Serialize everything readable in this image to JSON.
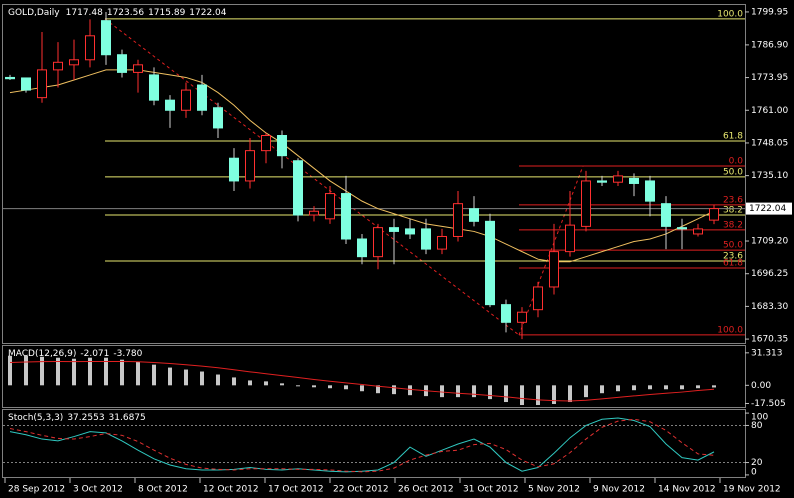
{
  "chart_data": [
    {
      "type": "candlestick",
      "title": "GOLD,Daily",
      "open": [
        1774,
        1773.8,
        1766,
        1777,
        1779,
        1781,
        1796.5,
        1783,
        1776,
        1775,
        1765,
        1761,
        1771,
        1762,
        1742,
        1733,
        1745,
        1751,
        1741,
        1719.5,
        1718,
        1728,
        1710,
        1703,
        1714.5,
        1714,
        1714,
        1706,
        1711,
        1722,
        1717,
        1684,
        1677,
        1682,
        1691,
        1705,
        1715,
        1733,
        1732.5,
        1734,
        1733,
        1724,
        1714.5,
        1712,
        1717.48
      ],
      "high": [
        1775,
        1774,
        1792,
        1788,
        1789,
        1797,
        1799.95,
        1785,
        1781,
        1778,
        1767,
        1772,
        1775,
        1764,
        1746,
        1750,
        1752,
        1753,
        1742,
        1723,
        1731,
        1735,
        1712,
        1716,
        1718,
        1718,
        1718,
        1714,
        1729,
        1727,
        1720,
        1686,
        1683,
        1693,
        1716,
        1729,
        1737,
        1735,
        1737,
        1736,
        1735,
        1727,
        1718,
        1716,
        1723.56
      ],
      "low": [
        1773,
        1768,
        1764,
        1770,
        1773,
        1778,
        1779,
        1774,
        1768,
        1763,
        1754,
        1758,
        1759,
        1750,
        1729,
        1730,
        1740,
        1738,
        1717,
        1717,
        1716,
        1708,
        1700,
        1698,
        1700,
        1710,
        1704,
        1704,
        1709,
        1715,
        1683,
        1673,
        1670.35,
        1679,
        1688,
        1703,
        1713,
        1731,
        1731,
        1727,
        1719,
        1706,
        1706,
        1711,
        1715.89
      ],
      "close": [
        1773.5,
        1769,
        1777,
        1780,
        1781,
        1790.5,
        1783,
        1776,
        1779,
        1765,
        1761,
        1769,
        1761,
        1754,
        1733,
        1745,
        1751,
        1743,
        1719.5,
        1721,
        1728,
        1710,
        1703,
        1714.5,
        1713,
        1712,
        1706,
        1711,
        1724,
        1717,
        1684,
        1677,
        1681,
        1691,
        1705,
        1715.5,
        1733,
        1732.5,
        1735,
        1732,
        1725,
        1715,
        1714,
        1714,
        1722.04
      ],
      "ma": [
        1768,
        1769,
        1770,
        1771,
        1773,
        1775,
        1777,
        1777,
        1777,
        1776,
        1775,
        1774,
        1772,
        1768,
        1763,
        1757,
        1752,
        1748,
        1743,
        1738,
        1733,
        1729,
        1725,
        1722,
        1720,
        1718,
        1716,
        1715,
        1714,
        1713,
        1711,
        1708,
        1705,
        1702,
        1701,
        1701,
        1703,
        1705,
        1707,
        1709,
        1710,
        1712,
        1715,
        1718,
        1721
      ],
      "up_color": "#ff3030",
      "down_color": "#7fffe0",
      "ma_color": "#f0c060",
      "ylim": [
        1668.8,
        1802.7
      ],
      "yticks": [
        1799.95,
        {
          "value": 1786.9,
          "label": "1786.90"
        },
        1773.95,
        {
          "value": 1761,
          "label": "1761.00"
        },
        1748.05,
        {
          "value": 1735.1,
          "label": "1735.10"
        },
        {
          "value": 1709.2,
          "label": "1709.20"
        },
        1696.25,
        {
          "value": 1683.3,
          "label": "1683.30"
        },
        1670.35
      ],
      "fibonacci": [
        {
          "color": "#e8e870",
          "levels": [
            {
              "label": "100.0",
              "value": 1797.2
            },
            {
              "label": "61.8",
              "value": 1748.8
            },
            {
              "label": "50.0",
              "value": 1734.6
            },
            {
              "label": "38.2",
              "value": 1719.5
            },
            {
              "label": "23.6",
              "value": 1701.3
            }
          ]
        },
        {
          "color": "#e02020",
          "levels": [
            {
              "label": "0.0",
              "value": 1738.9
            },
            {
              "label": "23.6",
              "value": 1723.5
            },
            {
              "label": "38.2",
              "value": 1713.6
            },
            {
              "label": "50.0",
              "value": 1705.6
            },
            {
              "label": "61.8",
              "value": 1698.5
            },
            {
              "label": "100.0",
              "value": 1672
            }
          ]
        }
      ],
      "x_labels": [
        "28 Sep 2012",
        "3 Oct 2012",
        "8 Oct 2012",
        "12 Oct 2012",
        "17 Oct 2012",
        "22 Oct 2012",
        "26 Oct 2012",
        "31 Oct 2012",
        "5 Nov 2012",
        "9 Nov 2012",
        "14 Nov 2012",
        "19 Nov 2012"
      ]
    },
    {
      "type": "macd",
      "title": "MACD(12,26,9)",
      "values": [
        28.5,
        28.5,
        27.5,
        26.6,
        25.6,
        26.6,
        26.6,
        24.7,
        22.8,
        19.9,
        17.1,
        15.2,
        13.3,
        10.4,
        7.6,
        4.7,
        3.8,
        1.9,
        0,
        -1.9,
        -2.8,
        -3.8,
        -5.7,
        -7.6,
        -8.5,
        -9.5,
        -10.4,
        -11.4,
        -11.4,
        -11.4,
        -13.3,
        -16.1,
        -19,
        -19,
        -18,
        -16.1,
        -11.4,
        -7.6,
        -5.7,
        -4.7,
        -3.8,
        -3.8,
        -3.8,
        -2.8,
        -2.071
      ],
      "signal": [
        22,
        22.5,
        22.8,
        22.9,
        22.8,
        22.9,
        23,
        23,
        22.7,
        22,
        21,
        19.8,
        18.5,
        16.9,
        15,
        13,
        11.2,
        9.4,
        7.5,
        5.6,
        3.9,
        2.4,
        0.8,
        -0.9,
        -2.4,
        -3.9,
        -5.2,
        -6.5,
        -7.6,
        -8.6,
        -9.8,
        -11.1,
        -12.7,
        -14,
        -14.8,
        -15.1,
        -14.4,
        -13.1,
        -11.6,
        -10.2,
        -8.9,
        -7.7,
        -6.5,
        -5,
        -3.78
      ],
      "signal_readout": {
        "value": -3.78,
        "label": "-3.780"
      },
      "color": "#c8c8c8",
      "signal_color": "#e02020",
      "ylim": [
        -20.9,
        37.9
      ],
      "yticks": [
        31.313,
        {
          "value": 0,
          "label": "0.00"
        },
        -17.505
      ]
    },
    {
      "type": "stoch",
      "title": "Stoch(5,3,3)",
      "values": [
        70,
        65,
        58,
        55,
        62,
        70,
        68,
        55,
        40,
        26,
        16,
        10,
        8,
        8,
        9,
        12,
        9,
        8,
        10,
        8,
        6,
        5,
        6,
        8,
        20,
        45,
        30,
        40,
        50,
        58,
        45,
        20,
        6,
        12,
        35,
        60,
        80,
        90,
        92,
        88,
        78,
        50,
        28,
        24,
        37.2553
      ],
      "signal": [
        75,
        70,
        64,
        59,
        58,
        62,
        67,
        64,
        54,
        40,
        27,
        17,
        11,
        9,
        8,
        10,
        10,
        10,
        9,
        9,
        8,
        6,
        5,
        6,
        11,
        24,
        32,
        38,
        40,
        49,
        51,
        41,
        24,
        13,
        18,
        36,
        58,
        77,
        87,
        90,
        86,
        72,
        52,
        34,
        31.6875
      ],
      "color": "#30c8c0",
      "signal_color": "#e03030",
      "ylim": [
        -5,
        105
      ],
      "yticks": [
        100,
        80,
        20,
        0
      ]
    }
  ]
}
